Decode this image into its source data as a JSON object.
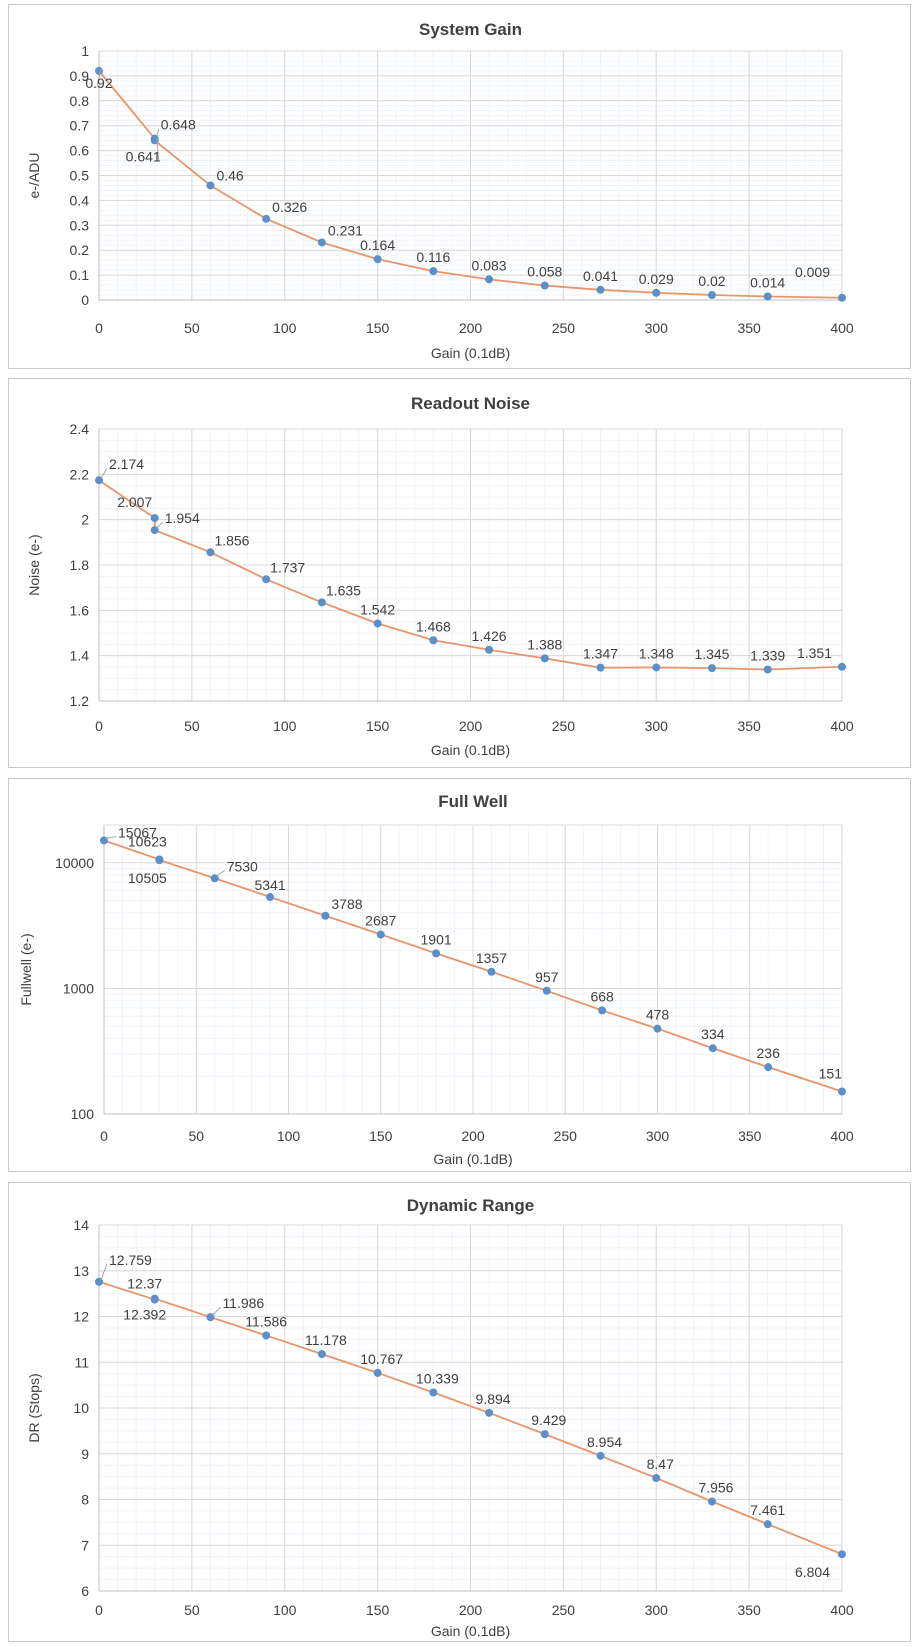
{
  "colors": {
    "line": "#e8956b",
    "marker": "#5b8fc9",
    "major_grid": "#d9d9d9",
    "minor_grid": "#eef4fb",
    "axis": "#bfbfbf",
    "text": "#404040"
  },
  "chart_data": [
    {
      "type": "line",
      "title": "System Gain",
      "xlabel": "Gain (0.1dB)",
      "ylabel": "e-/ADU",
      "xlim": [
        0,
        400
      ],
      "ylim": [
        0,
        1
      ],
      "x_ticks": [
        0,
        50,
        100,
        150,
        200,
        250,
        300,
        350,
        400
      ],
      "x_tick_labels": [
        "0",
        "50",
        "100",
        "150",
        "200",
        "250",
        "300",
        "350",
        "400"
      ],
      "y_ticks": [
        0,
        0.1,
        0.2,
        0.3,
        0.4,
        0.5,
        0.6,
        0.7,
        0.8,
        0.9,
        1
      ],
      "y_tick_labels": [
        "0",
        "0.1",
        "0.2",
        "0.3",
        "0.4",
        "0.5",
        "0.6",
        "0.7",
        "0.8",
        "0.9",
        "1"
      ],
      "grid": true,
      "series": [
        {
          "x": [
            0,
            30,
            30,
            60,
            90,
            120,
            150,
            180,
            210,
            240,
            270,
            300,
            330,
            360,
            400
          ],
          "y": [
            0.92,
            0.648,
            0.641,
            0.46,
            0.326,
            0.231,
            0.164,
            0.116,
            0.083,
            0.058,
            0.041,
            0.029,
            0.02,
            0.014,
            0.009
          ],
          "labels": [
            "0.92",
            "0.648",
            "0.641",
            "0.46",
            "0.326",
            "0.231",
            "0.164",
            "0.116",
            "0.083",
            "0.058",
            "0.041",
            "0.029",
            "0.02",
            "0.014",
            "0.009"
          ]
        }
      ]
    },
    {
      "type": "line",
      "title": "Readout Noise",
      "xlabel": "Gain (0.1dB)",
      "ylabel": "Noise (e-)",
      "xlim": [
        0,
        400
      ],
      "ylim": [
        1.2,
        2.4
      ],
      "x_ticks": [
        0,
        50,
        100,
        150,
        200,
        250,
        300,
        350,
        400
      ],
      "x_tick_labels": [
        "0",
        "50",
        "100",
        "150",
        "200",
        "250",
        "300",
        "350",
        "400"
      ],
      "y_ticks": [
        1.2,
        1.4,
        1.6,
        1.8,
        2,
        2.2,
        2.4
      ],
      "y_tick_labels": [
        "1.2",
        "1.4",
        "1.6",
        "1.8",
        "2",
        "2.2",
        "2.4"
      ],
      "grid": true,
      "series": [
        {
          "x": [
            0,
            30,
            30,
            60,
            90,
            120,
            150,
            180,
            210,
            240,
            270,
            300,
            330,
            360,
            400
          ],
          "y": [
            2.174,
            2.007,
            1.954,
            1.856,
            1.737,
            1.635,
            1.542,
            1.468,
            1.426,
            1.388,
            1.347,
            1.348,
            1.345,
            1.339,
            1.351
          ],
          "labels": [
            "2.174",
            "2.007",
            "1.954",
            "1.856",
            "1.737",
            "1.635",
            "1.542",
            "1.468",
            "1.426",
            "1.388",
            "1.347",
            "1.348",
            "1.345",
            "1.339",
            "1.351"
          ]
        }
      ]
    },
    {
      "type": "line",
      "title": "Full Well",
      "xlabel": "Gain (0.1dB)",
      "ylabel": "Fullwell (e-)",
      "xlim": [
        0,
        400
      ],
      "ylim": [
        100,
        20000
      ],
      "y_scale": "log",
      "x_ticks": [
        0,
        50,
        100,
        150,
        200,
        250,
        300,
        350,
        400
      ],
      "x_tick_labels": [
        "0",
        "50",
        "100",
        "150",
        "200",
        "250",
        "300",
        "350",
        "400"
      ],
      "y_ticks": [
        100,
        1000,
        10000
      ],
      "y_tick_labels": [
        "100",
        "1000",
        "10000"
      ],
      "grid": true,
      "series": [
        {
          "x": [
            0,
            30,
            30,
            60,
            90,
            120,
            150,
            180,
            210,
            240,
            270,
            300,
            330,
            360,
            400
          ],
          "y": [
            15067,
            10623,
            10505,
            7530,
            5341,
            3788,
            2687,
            1901,
            1357,
            957,
            668,
            478,
            334,
            236,
            151
          ],
          "labels": [
            "15067",
            "10623",
            "10505",
            "7530",
            "5341",
            "3788",
            "2687",
            "1901",
            "1357",
            "957",
            "668",
            "478",
            "334",
            "236",
            "151"
          ]
        }
      ]
    },
    {
      "type": "line",
      "title": "Dynamic Range",
      "xlabel": "Gain (0.1dB)",
      "ylabel": "DR (Stops)",
      "xlim": [
        0,
        400
      ],
      "ylim": [
        6,
        14
      ],
      "x_ticks": [
        0,
        50,
        100,
        150,
        200,
        250,
        300,
        350,
        400
      ],
      "x_tick_labels": [
        "0",
        "50",
        "100",
        "150",
        "200",
        "250",
        "300",
        "350",
        "400"
      ],
      "y_ticks": [
        6,
        7,
        8,
        9,
        10,
        11,
        12,
        13,
        14
      ],
      "y_tick_labels": [
        "6",
        "7",
        "8",
        "9",
        "10",
        "11",
        "12",
        "13",
        "14"
      ],
      "grid": true,
      "series": [
        {
          "x": [
            0,
            30,
            30,
            60,
            90,
            120,
            150,
            180,
            210,
            240,
            270,
            300,
            330,
            360,
            400
          ],
          "y": [
            12.759,
            12.37,
            12.392,
            11.986,
            11.586,
            11.178,
            10.767,
            10.339,
            9.894,
            9.429,
            8.954,
            8.47,
            7.956,
            7.461,
            6.804
          ],
          "labels": [
            "12.759",
            "12.37",
            "12.392",
            "11.986",
            "11.586",
            "11.178",
            "10.767",
            "10.339",
            "9.894",
            "9.429",
            "8.954",
            "8.47",
            "7.956",
            "7.461",
            "6.804"
          ]
        }
      ]
    }
  ]
}
